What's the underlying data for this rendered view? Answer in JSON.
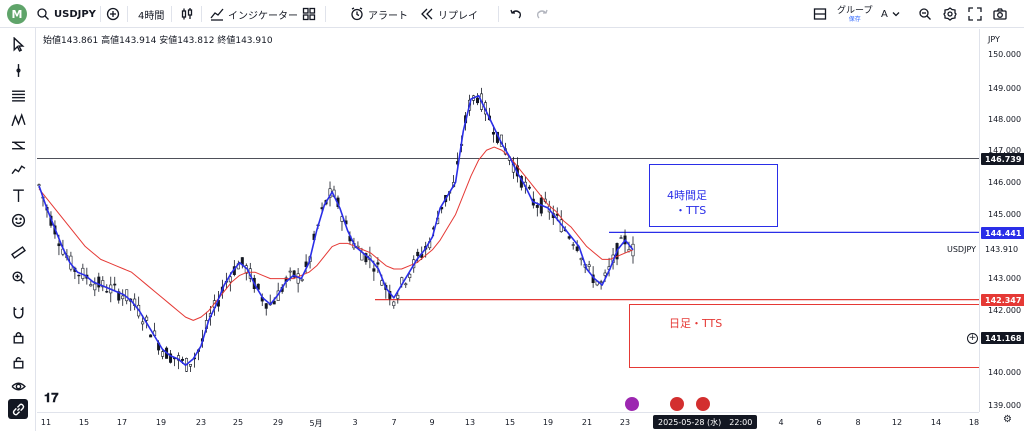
{
  "toolbar": {
    "avatar_letter": "M",
    "symbol": "USDJPY",
    "timeframe": "4時間",
    "indicators_label": "インジケーター",
    "alert_label": "アラート",
    "replay_label": "リプレイ",
    "group_label": "グループ",
    "save_label": "保存",
    "group_letter": "A"
  },
  "ohlc": {
    "open_label": "始値",
    "open": "143.861",
    "high_label": "高値",
    "high": "143.914",
    "low_label": "安値",
    "low": "143.812",
    "close_label": "終値",
    "close": "143.910"
  },
  "price_axis": {
    "currency": "JPY",
    "labels": [
      "150.000",
      "149.000",
      "148.000",
      "147.000",
      "146.000",
      "145.000",
      "143.000",
      "142.000",
      "140.000",
      "139.000"
    ],
    "tag_146": "146.739",
    "tag_144": "144.441",
    "tag_current": "143.910",
    "tag_142": "142.347",
    "tag_crosshair": "141.168"
  },
  "symbol_label": "USDJPY",
  "time_axis": {
    "labels": [
      "11",
      "15",
      "17",
      "19",
      "23",
      "25",
      "29",
      "5月",
      "3",
      "7",
      "9",
      "13",
      "15",
      "19",
      "21",
      "23",
      "4",
      "6",
      "8",
      "12",
      "14",
      "18"
    ],
    "current": "2025-05-28 (水)　22:00"
  },
  "annotations": {
    "blue_box_line1": "4時間足",
    "blue_box_line2": "・TTS",
    "red_box": "日足・TTS"
  },
  "colors": {
    "blue_line": "#2a2ee8",
    "red_line": "#e53935",
    "candle": "#131722",
    "accent_green": "#5fa46a"
  },
  "chart_data": {
    "type": "line",
    "title": "",
    "price_min": 139.0,
    "price_max": 150.0,
    "horizontal_levels": [
      {
        "price": 146.739,
        "color": "#131722"
      },
      {
        "price": 144.441,
        "color": "#2a2ee8"
      },
      {
        "price": 142.347,
        "color": "#e53935"
      }
    ],
    "series": [
      {
        "values": [
          145.9,
          145.2,
          144.6,
          144.0,
          143.5,
          143.2,
          143.1,
          142.9,
          142.8,
          142.7,
          142.6,
          142.5,
          142.3,
          142.0,
          141.6,
          141.2,
          140.8,
          140.6,
          140.5,
          140.3,
          140.5,
          140.9,
          141.7,
          142.2,
          142.8,
          143.2,
          143.5,
          143.3,
          142.8,
          142.4,
          142.2,
          142.5,
          142.9,
          143.1,
          143.0,
          143.5,
          144.5,
          145.3,
          145.7,
          145.2,
          144.5,
          144.0,
          143.8,
          143.6,
          143.3,
          142.7,
          142.4,
          142.8,
          143.2,
          143.6,
          143.9,
          144.3,
          145.2,
          145.6,
          146.0,
          147.6,
          148.6,
          148.7,
          148.2,
          147.7,
          147.2,
          146.8,
          146.3,
          145.9,
          145.4,
          145.3,
          145.2,
          144.9,
          144.6,
          144.3,
          144.0,
          143.3,
          143.0,
          142.8,
          143.3,
          143.9,
          144.2,
          143.9
        ]
      },
      {
        "values": [
          145.8,
          145.5,
          145.2,
          144.9,
          144.6,
          144.3,
          144.0,
          143.8,
          143.6,
          143.5,
          143.4,
          143.3,
          143.2,
          143.0,
          142.8,
          142.6,
          142.4,
          142.2,
          142.0,
          141.8,
          141.7,
          141.8,
          142.0,
          142.3,
          142.6,
          142.9,
          143.1,
          143.2,
          143.2,
          143.1,
          143.0,
          143.0,
          143.0,
          143.0,
          143.1,
          143.2,
          143.4,
          143.7,
          144.0,
          144.1,
          144.1,
          144.0,
          143.9,
          143.8,
          143.6,
          143.4,
          143.3,
          143.3,
          143.4,
          143.5,
          143.7,
          143.9,
          144.2,
          144.6,
          145.0,
          145.6,
          146.2,
          146.7,
          147.0,
          147.1,
          147.0,
          146.8,
          146.5,
          146.2,
          145.9,
          145.6,
          145.3,
          145.1,
          144.8,
          144.6,
          144.3,
          144.0,
          143.8,
          143.6,
          143.6,
          143.7,
          143.8,
          143.9
        ]
      }
    ]
  }
}
